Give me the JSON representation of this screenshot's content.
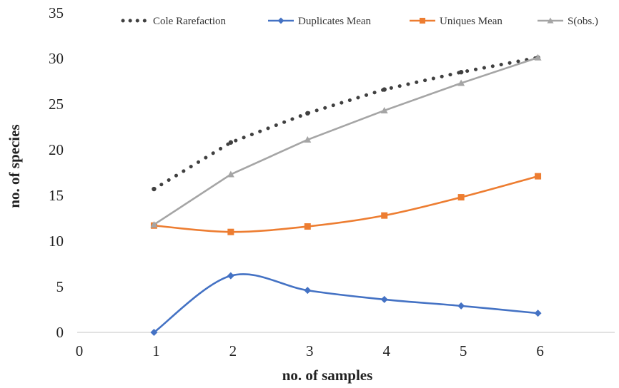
{
  "chart_data": {
    "type": "line",
    "title": "",
    "xlabel": "no. of samples",
    "ylabel": "no. of species",
    "xlim": [
      0,
      7
    ],
    "ylim": [
      0,
      35
    ],
    "x_ticks": [
      "0",
      "1",
      "2",
      "3",
      "4",
      "5",
      "6"
    ],
    "y_ticks": [
      "0",
      "5",
      "10",
      "15",
      "20",
      "25",
      "30",
      "35"
    ],
    "grid": false,
    "legend_position": "top",
    "series": [
      {
        "name": "Cole Rarefaction",
        "color": "#404040",
        "style": "dotted",
        "marker": "circle",
        "x": [
          1,
          2,
          3,
          4,
          5,
          6
        ],
        "values": [
          15.7,
          20.8,
          24.0,
          26.6,
          28.5,
          30.1
        ]
      },
      {
        "name": "Duplicates Mean",
        "color": "#4472C4",
        "style": "smooth",
        "marker": "diamond",
        "x": [
          1,
          2,
          3,
          4,
          5,
          6
        ],
        "values": [
          0,
          6.2,
          4.6,
          3.6,
          2.9,
          2.1
        ]
      },
      {
        "name": "Uniques Mean",
        "color": "#ED7D31",
        "style": "smooth",
        "marker": "square",
        "x": [
          1,
          2,
          3,
          4,
          5,
          6
        ],
        "values": [
          11.7,
          11.0,
          11.6,
          12.8,
          14.8,
          17.1
        ]
      },
      {
        "name": "S(obs.)",
        "color": "#A5A5A5",
        "style": "solid",
        "marker": "triangle",
        "x": [
          1,
          2,
          3,
          4,
          5,
          6
        ],
        "values": [
          11.8,
          17.3,
          21.1,
          24.3,
          27.3,
          30.1
        ]
      }
    ]
  }
}
